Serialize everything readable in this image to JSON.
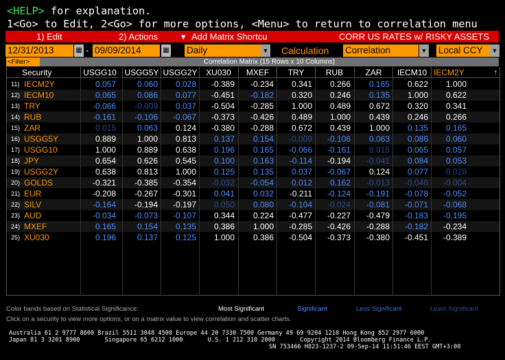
{
  "cmd": {
    "line1_key": "<HELP>",
    "line1_rest": " for explanation.",
    "line2_a": "1<Go>",
    "line2_b": " to Edit, ",
    "line2_c": "2<Go>",
    "line2_d": " for more options, ",
    "line2_e": "<Menu>",
    "line2_f": " to return to correlation menu"
  },
  "menu": {
    "edit": "1) Edit",
    "actions": "2) Actions",
    "actions_arrow": "▾",
    "add_matrix": "Add Matrix Shortcu",
    "title": "CORR US RATES w/ RISKY ASSETS"
  },
  "inputs": {
    "start_date": "12/31/2013",
    "dash": "-",
    "end_date": "09/09/2014",
    "periodicity": "Daily",
    "calc_label": "Calculation",
    "calculation": "Correlation",
    "currency": "Local CCY"
  },
  "filter_label": "<Filter>",
  "matrix_title": "Correlation Matrix (15 Rows x 10 Columns)",
  "columns": [
    "USGG10",
    "USGG5Y",
    "USGG2Y",
    "XU030",
    "MXEF",
    "TRY",
    "RUB",
    "ZAR",
    "IECM10",
    "IECM2Y"
  ],
  "security_header": "Security",
  "sort_arrow": "↑",
  "rows": [
    {
      "n": "11)",
      "sec": "IECM2Y",
      "v": [
        "0.057",
        "0.060",
        "0.028",
        "-0.389",
        "-0.234",
        "0.341",
        "0.266",
        "0.165",
        "0.622",
        "1.000"
      ]
    },
    {
      "n": "12)",
      "sec": "IECM10",
      "v": [
        "0.065",
        "0.086",
        "0.077",
        "-0.451",
        "-0.182",
        "0.320",
        "0.246",
        "0.135",
        "1.000",
        "0.622"
      ]
    },
    {
      "n": "13)",
      "sec": "TRY",
      "v": [
        "-0.066",
        "-0.009",
        "0.037",
        "-0.504",
        "-0.285",
        "1.000",
        "0.489",
        "0.672",
        "0.320",
        "0.341"
      ]
    },
    {
      "n": "14)",
      "sec": "RUB",
      "v": [
        "-0.161",
        "-0.106",
        "-0.067",
        "-0.373",
        "-0.426",
        "0.489",
        "1.000",
        "0.439",
        "0.246",
        "0.266"
      ]
    },
    {
      "n": "15)",
      "sec": "ZAR",
      "v": [
        "0.015",
        "0.063",
        "0.124",
        "-0.380",
        "-0.288",
        "0.672",
        "0.439",
        "1.000",
        "0.135",
        "0.165"
      ]
    },
    {
      "n": "16)",
      "sec": "USGG5Y",
      "v": [
        "0.889",
        "1.000",
        "0.813",
        "0.137",
        "0.154",
        "-0.009",
        "-0.106",
        "0.063",
        "0.086",
        "0.060"
      ]
    },
    {
      "n": "17)",
      "sec": "USGG10",
      "v": [
        "1.000",
        "0.889",
        "0.638",
        "0.196",
        "0.165",
        "-0.066",
        "-0.161",
        "0.015",
        "0.065",
        "0.057"
      ]
    },
    {
      "n": "18)",
      "sec": "JPY",
      "v": [
        "0.654",
        "0.626",
        "0.545",
        "0.100",
        "0.163",
        "-0.114",
        "-0.194",
        "-0.041",
        "0.084",
        "0.053"
      ]
    },
    {
      "n": "19)",
      "sec": "USGG2Y",
      "v": [
        "0.638",
        "0.813",
        "1.000",
        "0.125",
        "0.135",
        "0.037",
        "-0.067",
        "0.124",
        "0.077",
        "0.028"
      ]
    },
    {
      "n": "20)",
      "sec": "GOLDS",
      "v": [
        "-0.321",
        "-0.385",
        "-0.354",
        "-0.032",
        "-0.054",
        "0.012",
        "0.162",
        "-0.013",
        "-0.046",
        "-0.004"
      ]
    },
    {
      "n": "21)",
      "sec": "EUR",
      "v": [
        "-0.208",
        "-0.267",
        "-0.301",
        "0.041",
        "0.032",
        "-0.211",
        "-0.124",
        "-0.191",
        "-0.078",
        "-0.052"
      ]
    },
    {
      "n": "22)",
      "sec": "SILV",
      "v": [
        "-0.164",
        "-0.194",
        "-0.197",
        "0.050",
        "0.080",
        "-0.104",
        "-0.024",
        "-0.081",
        "-0.071",
        "-0.068"
      ]
    },
    {
      "n": "23)",
      "sec": "AUD",
      "v": [
        "-0.034",
        "-0.073",
        "-0.107",
        "0.344",
        "0.224",
        "-0.477",
        "-0.227",
        "-0.479",
        "-0.183",
        "-0.195"
      ]
    },
    {
      "n": "24)",
      "sec": "MXEF",
      "v": [
        "0.165",
        "0.154",
        "0.135",
        "0.386",
        "1.000",
        "-0.285",
        "-0.426",
        "-0.288",
        "-0.182",
        "-0.234"
      ]
    },
    {
      "n": "25)",
      "sec": "XU030",
      "v": [
        "0.196",
        "0.137",
        "0.125",
        "1.000",
        "0.386",
        "-0.504",
        "-0.373",
        "-0.380",
        "-0.451",
        "-0.389"
      ]
    }
  ],
  "cell_colors": [
    [
      "b",
      "b",
      "b",
      "w",
      "w",
      "w",
      "w",
      "b",
      "w",
      "w"
    ],
    [
      "b",
      "b",
      "b",
      "w",
      "b",
      "w",
      "w",
      "b",
      "w",
      "w"
    ],
    [
      "b",
      "d",
      "b",
      "w",
      "w",
      "w",
      "w",
      "w",
      "w",
      "w"
    ],
    [
      "b",
      "b",
      "b",
      "w",
      "w",
      "w",
      "w",
      "w",
      "w",
      "w"
    ],
    [
      "d",
      "b",
      "w",
      "w",
      "w",
      "w",
      "w",
      "w",
      "b",
      "b"
    ],
    [
      "w",
      "w",
      "w",
      "b",
      "b",
      "d",
      "b",
      "b",
      "b",
      "b"
    ],
    [
      "w",
      "w",
      "w",
      "b",
      "b",
      "b",
      "b",
      "d",
      "b",
      "b"
    ],
    [
      "w",
      "w",
      "w",
      "b",
      "b",
      "b",
      "w",
      "d",
      "b",
      "b"
    ],
    [
      "w",
      "w",
      "w",
      "b",
      "b",
      "b",
      "b",
      "w",
      "b",
      "d"
    ],
    [
      "w",
      "w",
      "w",
      "d",
      "b",
      "b",
      "b",
      "d",
      "d",
      "d"
    ],
    [
      "w",
      "w",
      "w",
      "b",
      "b",
      "w",
      "b",
      "b",
      "b",
      "b"
    ],
    [
      "b",
      "w",
      "w",
      "d",
      "b",
      "b",
      "d",
      "b",
      "b",
      "b"
    ],
    [
      "b",
      "b",
      "b",
      "w",
      "w",
      "w",
      "w",
      "w",
      "b",
      "b"
    ],
    [
      "b",
      "b",
      "b",
      "w",
      "w",
      "w",
      "w",
      "w",
      "b",
      "w"
    ],
    [
      "b",
      "b",
      "b",
      "w",
      "w",
      "w",
      "w",
      "w",
      "w",
      "w"
    ]
  ],
  "colors": {
    "w": "#ffffff",
    "b": "#4d8cff",
    "d": "#2c4a8a",
    "orange": "#ff9900",
    "red": "#d40000",
    "green": "#4fe04f"
  },
  "footer": {
    "bands": "Color bands based on Statistical Significance:",
    "most": "Most Significant",
    "sig": "Significant",
    "less": "Less Significant",
    "least": "Least Significant",
    "click": "Click on a security to view more options, or on a matrix value to view correlation and scatter charts.",
    "phones1": "Australia 61 2 9777 8600 Brazil 5511 3048 4500 Europe 44 20 7330 7500 Germany 49 69 9204 1210 Hong Kong 852 2977 6000",
    "phones2": "Japan 81 3 3201 8900       Singapore 65 6212 1000       U.S. 1 212 318 2000       Copyright 2014 Bloomberg Finance L.P.",
    "sn": "SN 753466 H823-1237-2 09-Sep-14 11:51:46 EEST GMT+3:00"
  }
}
